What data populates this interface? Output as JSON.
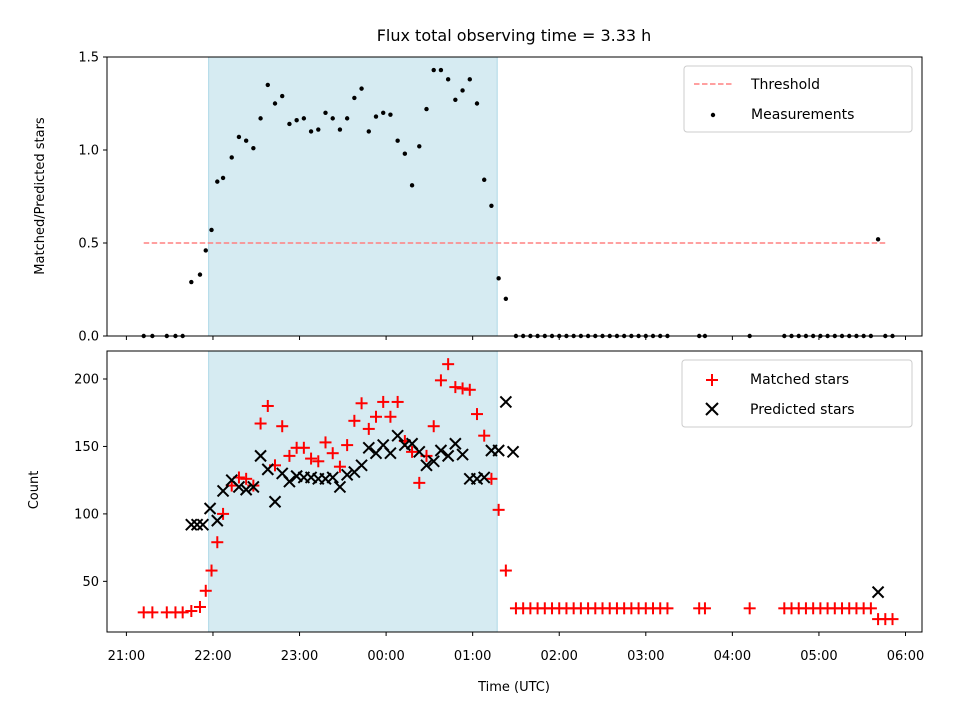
{
  "title": "Flux total observing time = 3.33 h",
  "chart_data": [
    {
      "type": "scatter",
      "panel": "top",
      "xlabel": "",
      "ylabel": "Matched/Predicted stars",
      "ylim": [
        0,
        1.5
      ],
      "yticks": [
        0.0,
        0.5,
        1.0,
        1.5
      ],
      "ytick_labels": [
        "0.0",
        "0.5",
        "1.0",
        "1.5"
      ],
      "legend": {
        "placement": "top-right",
        "entries": [
          "Threshold",
          "Measurements"
        ]
      },
      "threshold": {
        "name": "Threshold",
        "y": 0.5,
        "x_start": "21:12",
        "x_end": "05:47",
        "color": "#ff8080"
      },
      "shaded_span": {
        "x_start": "21:57",
        "x_end": "01:17",
        "color": "#add8e6"
      },
      "series": [
        {
          "name": "Measurements",
          "color": "#000000",
          "points": [
            [
              "21:12",
              0
            ],
            [
              "21:18",
              0
            ],
            [
              "21:28",
              0
            ],
            [
              "21:34",
              0
            ],
            [
              "21:39",
              0
            ],
            [
              "21:45",
              0.29
            ],
            [
              "21:51",
              0.33
            ],
            [
              "21:55",
              0.46
            ],
            [
              "21:59",
              0.57
            ],
            [
              "22:03",
              0.83
            ],
            [
              "22:07",
              0.85
            ],
            [
              "22:13",
              0.96
            ],
            [
              "22:18",
              1.07
            ],
            [
              "22:23",
              1.05
            ],
            [
              "22:28",
              1.01
            ],
            [
              "22:33",
              1.17
            ],
            [
              "22:38",
              1.35
            ],
            [
              "22:43",
              1.25
            ],
            [
              "22:48",
              1.29
            ],
            [
              "22:53",
              1.14
            ],
            [
              "22:58",
              1.16
            ],
            [
              "23:03",
              1.17
            ],
            [
              "23:08",
              1.1
            ],
            [
              "23:13",
              1.11
            ],
            [
              "23:18",
              1.2
            ],
            [
              "23:23",
              1.17
            ],
            [
              "23:28",
              1.11
            ],
            [
              "23:33",
              1.17
            ],
            [
              "23:38",
              1.28
            ],
            [
              "23:43",
              1.33
            ],
            [
              "23:48",
              1.1
            ],
            [
              "23:53",
              1.18
            ],
            [
              "23:58",
              1.2
            ],
            [
              "00:03",
              1.19
            ],
            [
              "00:08",
              1.05
            ],
            [
              "00:13",
              0.98
            ],
            [
              "00:18",
              0.81
            ],
            [
              "00:23",
              1.02
            ],
            [
              "00:28",
              1.22
            ],
            [
              "00:33",
              1.43
            ],
            [
              "00:38",
              1.43
            ],
            [
              "00:43",
              1.38
            ],
            [
              "00:48",
              1.27
            ],
            [
              "00:53",
              1.32
            ],
            [
              "00:58",
              1.38
            ],
            [
              "01:03",
              1.25
            ],
            [
              "01:08",
              0.84
            ],
            [
              "01:13",
              0.7
            ],
            [
              "01:18",
              0.31
            ],
            [
              "01:23",
              0.2
            ],
            [
              "01:30",
              0
            ],
            [
              "01:35",
              0
            ],
            [
              "01:40",
              0
            ],
            [
              "01:45",
              0
            ],
            [
              "01:50",
              0
            ],
            [
              "01:55",
              0
            ],
            [
              "02:00",
              0
            ],
            [
              "02:05",
              0
            ],
            [
              "02:10",
              0
            ],
            [
              "02:15",
              0
            ],
            [
              "02:20",
              0
            ],
            [
              "02:25",
              0
            ],
            [
              "02:30",
              0
            ],
            [
              "02:35",
              0
            ],
            [
              "02:40",
              0
            ],
            [
              "02:45",
              0
            ],
            [
              "02:50",
              0
            ],
            [
              "02:55",
              0
            ],
            [
              "03:00",
              0
            ],
            [
              "03:05",
              0
            ],
            [
              "03:10",
              0
            ],
            [
              "03:15",
              0
            ],
            [
              "03:37",
              0
            ],
            [
              "03:41",
              0
            ],
            [
              "04:12",
              0
            ],
            [
              "04:36",
              0
            ],
            [
              "04:41",
              0
            ],
            [
              "04:46",
              0
            ],
            [
              "04:51",
              0
            ],
            [
              "04:56",
              0
            ],
            [
              "05:01",
              0
            ],
            [
              "05:06",
              0
            ],
            [
              "05:11",
              0
            ],
            [
              "05:16",
              0
            ],
            [
              "05:21",
              0
            ],
            [
              "05:26",
              0
            ],
            [
              "05:31",
              0
            ],
            [
              "05:36",
              0
            ],
            [
              "05:41",
              0.52
            ],
            [
              "05:46",
              0
            ],
            [
              "05:51",
              0
            ]
          ]
        }
      ]
    },
    {
      "type": "scatter",
      "panel": "bottom",
      "xlabel": "Time (UTC)",
      "ylabel": "Count",
      "ylim": [
        10,
        220
      ],
      "yticks": [
        50,
        100,
        150,
        200
      ],
      "ytick_labels": [
        "50",
        "100",
        "150",
        "200"
      ],
      "xticks": [
        "21:00",
        "22:00",
        "23:00",
        "00:00",
        "01:00",
        "02:00",
        "03:00",
        "04:00",
        "05:00",
        "06:00"
      ],
      "xtick_labels": [
        "21:00",
        "22:00",
        "23:00",
        "00:00",
        "01:00",
        "02:00",
        "03:00",
        "04:00",
        "05:00",
        "06:00"
      ],
      "legend": {
        "placement": "top-right",
        "entries": [
          "Matched stars",
          "Predicted stars"
        ]
      },
      "shaded_span": {
        "x_start": "21:57",
        "x_end": "01:17",
        "color": "#add8e6"
      },
      "series": [
        {
          "name": "Matched stars",
          "marker": "plus",
          "color": "#ff0000",
          "points": [
            [
              "21:12",
              27
            ],
            [
              "21:18",
              27
            ],
            [
              "21:28",
              27
            ],
            [
              "21:34",
              27
            ],
            [
              "21:39",
              27
            ],
            [
              "21:45",
              28
            ],
            [
              "21:51",
              31
            ],
            [
              "21:55",
              43
            ],
            [
              "21:59",
              58
            ],
            [
              "22:03",
              79
            ],
            [
              "22:07",
              100
            ],
            [
              "22:13",
              121
            ],
            [
              "22:18",
              127
            ],
            [
              "22:23",
              126
            ],
            [
              "22:28",
              121
            ],
            [
              "22:33",
              167
            ],
            [
              "22:38",
              180
            ],
            [
              "22:43",
              136
            ],
            [
              "22:48",
              165
            ],
            [
              "22:53",
              143
            ],
            [
              "22:58",
              149
            ],
            [
              "23:03",
              149
            ],
            [
              "23:08",
              141
            ],
            [
              "23:13",
              139
            ],
            [
              "23:18",
              153
            ],
            [
              "23:23",
              145
            ],
            [
              "23:28",
              135
            ],
            [
              "23:33",
              151
            ],
            [
              "23:38",
              169
            ],
            [
              "23:43",
              182
            ],
            [
              "23:48",
              163
            ],
            [
              "23:53",
              172
            ],
            [
              "23:58",
              183
            ],
            [
              "00:03",
              172
            ],
            [
              "00:08",
              183
            ],
            [
              "00:13",
              154
            ],
            [
              "00:18",
              146
            ],
            [
              "00:23",
              123
            ],
            [
              "00:28",
              143
            ],
            [
              "00:33",
              165
            ],
            [
              "00:38",
              199
            ],
            [
              "00:43",
              211
            ],
            [
              "00:48",
              194
            ],
            [
              "00:53",
              193
            ],
            [
              "00:58",
              192
            ],
            [
              "01:03",
              174
            ],
            [
              "01:08",
              158
            ],
            [
              "01:13",
              126
            ],
            [
              "01:18",
              103
            ],
            [
              "01:23",
              58
            ],
            [
              "01:30",
              30
            ],
            [
              "01:35",
              30
            ],
            [
              "01:40",
              30
            ],
            [
              "01:45",
              30
            ],
            [
              "01:50",
              30
            ],
            [
              "01:55",
              30
            ],
            [
              "02:00",
              30
            ],
            [
              "02:05",
              30
            ],
            [
              "02:10",
              30
            ],
            [
              "02:15",
              30
            ],
            [
              "02:20",
              30
            ],
            [
              "02:25",
              30
            ],
            [
              "02:30",
              30
            ],
            [
              "02:35",
              30
            ],
            [
              "02:40",
              30
            ],
            [
              "02:45",
              30
            ],
            [
              "02:50",
              30
            ],
            [
              "02:55",
              30
            ],
            [
              "03:00",
              30
            ],
            [
              "03:05",
              30
            ],
            [
              "03:10",
              30
            ],
            [
              "03:15",
              30
            ],
            [
              "03:37",
              30
            ],
            [
              "03:41",
              30
            ],
            [
              "04:12",
              30
            ],
            [
              "04:36",
              30
            ],
            [
              "04:41",
              30
            ],
            [
              "04:46",
              30
            ],
            [
              "04:51",
              30
            ],
            [
              "04:56",
              30
            ],
            [
              "05:01",
              30
            ],
            [
              "05:06",
              30
            ],
            [
              "05:11",
              30
            ],
            [
              "05:16",
              30
            ],
            [
              "05:21",
              30
            ],
            [
              "05:26",
              30
            ],
            [
              "05:31",
              30
            ],
            [
              "05:36",
              30
            ],
            [
              "05:41",
              22
            ],
            [
              "05:46",
              22
            ],
            [
              "05:51",
              22
            ]
          ]
        },
        {
          "name": "Predicted stars",
          "marker": "x",
          "color": "#000000",
          "points": [
            [
              "21:45",
              92
            ],
            [
              "21:49",
              92
            ],
            [
              "21:53",
              92
            ],
            [
              "21:58",
              104
            ],
            [
              "22:03",
              95
            ],
            [
              "22:07",
              117
            ],
            [
              "22:13",
              125
            ],
            [
              "22:18",
              120
            ],
            [
              "22:23",
              118
            ],
            [
              "22:28",
              120
            ],
            [
              "22:33",
              143
            ],
            [
              "22:38",
              133
            ],
            [
              "22:43",
              109
            ],
            [
              "22:48",
              130
            ],
            [
              "22:53",
              124
            ],
            [
              "22:58",
              128
            ],
            [
              "23:03",
              127
            ],
            [
              "23:08",
              127
            ],
            [
              "23:13",
              126
            ],
            [
              "23:18",
              126
            ],
            [
              "23:23",
              127
            ],
            [
              "23:28",
              120
            ],
            [
              "23:33",
              129
            ],
            [
              "23:38",
              131
            ],
            [
              "23:43",
              136
            ],
            [
              "23:48",
              149
            ],
            [
              "23:53",
              145
            ],
            [
              "23:58",
              151
            ],
            [
              "00:03",
              145
            ],
            [
              "00:08",
              158
            ],
            [
              "00:13",
              151
            ],
            [
              "00:18",
              152
            ],
            [
              "00:23",
              146
            ],
            [
              "00:28",
              136
            ],
            [
              "00:33",
              139
            ],
            [
              "00:38",
              147
            ],
            [
              "00:43",
              143
            ],
            [
              "00:48",
              152
            ],
            [
              "00:53",
              144
            ],
            [
              "00:58",
              126
            ],
            [
              "01:03",
              126
            ],
            [
              "01:08",
              127
            ],
            [
              "01:13",
              147
            ],
            [
              "01:18",
              147
            ],
            [
              "01:23",
              183
            ],
            [
              "01:28",
              146
            ],
            [
              "05:41",
              42
            ]
          ]
        }
      ]
    }
  ]
}
